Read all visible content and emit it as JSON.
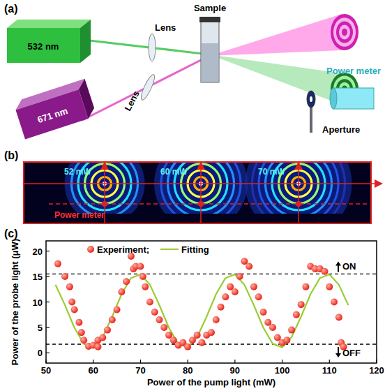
{
  "panels": {
    "a": "(a)",
    "b": "(b)",
    "c": "(c)"
  },
  "setup": {
    "lasers": [
      {
        "label": "532 nm",
        "color": "#2fbf3f"
      },
      {
        "label": "671 nm",
        "color": "#8a1a8a"
      }
    ],
    "lenses": [
      "Lens",
      "Lens"
    ],
    "sample": "Sample",
    "power_meter": "Power meter",
    "aperture": "Aperture"
  },
  "patterns": {
    "items": [
      {
        "label": "52 mW",
        "ring_count": 5
      },
      {
        "label": "60 mW",
        "ring_count": 6
      },
      {
        "label": "70 mW",
        "ring_count": 7
      }
    ],
    "detector": "Power meter"
  },
  "chart_data": {
    "type": "scatter",
    "x_label": "Power of the pump light (mW)",
    "y_label": "Power of the probe light (μW)",
    "xlim": [
      50,
      120
    ],
    "xticks": [
      50,
      60,
      70,
      80,
      90,
      100,
      110,
      120
    ],
    "ylim": [
      -2,
      22
    ],
    "yticks": [
      0,
      5,
      10,
      15,
      20
    ],
    "legend": "upper left",
    "annotations": [
      {
        "text": "ON",
        "value": 15.5
      },
      {
        "text": "OFF",
        "value": 1.7
      }
    ],
    "series": [
      {
        "name": "Experiment;",
        "type": "scatter",
        "color": "#e8231a",
        "marker": "circle",
        "x": [
          52.5,
          54,
          55,
          55.5,
          56,
          57,
          57.5,
          58,
          59,
          60,
          61,
          61,
          62,
          63,
          64,
          65,
          66,
          67,
          68,
          68.5,
          69,
          70,
          70.5,
          71,
          72,
          73,
          74,
          75,
          76,
          77,
          78,
          79,
          80,
          81,
          82,
          83,
          84,
          85,
          86,
          87,
          88,
          89,
          90,
          91,
          92,
          93,
          94,
          95,
          96,
          97,
          98,
          99,
          100,
          101,
          102,
          103,
          104,
          105,
          106,
          107,
          108,
          109,
          110,
          111,
          112,
          112.5,
          113
        ],
        "values": [
          17.5,
          15,
          13,
          10,
          8.5,
          6,
          4,
          2.5,
          1.3,
          1.5,
          2.5,
          1.2,
          3,
          4.5,
          6.5,
          8.5,
          12,
          14,
          19,
          16.5,
          17,
          17,
          15,
          13,
          10,
          8,
          6.5,
          5,
          3.5,
          2.5,
          1.5,
          2,
          1.2,
          2.5,
          3.5,
          2,
          3.5,
          4,
          6.5,
          9,
          11,
          13,
          12,
          15,
          18,
          17,
          13,
          11,
          8,
          6,
          5,
          3,
          2,
          2.5,
          4.5,
          7.5,
          9.5,
          13,
          17,
          16.5,
          16.5,
          16,
          13,
          10,
          7,
          2,
          1.2
        ]
      },
      {
        "name": "Fitting",
        "type": "line",
        "color": "#9acd32",
        "line_style": "solid",
        "x": [
          52,
          54,
          56,
          58,
          60,
          62,
          64,
          66,
          68,
          70,
          72,
          74,
          76,
          78,
          80,
          82,
          84,
          86,
          88,
          90,
          92,
          94,
          96,
          98,
          100,
          102,
          104,
          106,
          108,
          110,
          112,
          114
        ],
        "values": [
          13.4,
          9.4,
          4.96,
          1.79,
          1.09,
          3.12,
          7.12,
          11.54,
          14.71,
          15.41,
          13.38,
          9.38,
          4.96,
          1.79,
          1.09,
          3.12,
          7.12,
          11.54,
          14.71,
          15.41,
          13.38,
          9.38,
          4.96,
          1.79,
          1.09,
          3.12,
          7.12,
          11.54,
          14.71,
          15.41,
          13.38,
          9.38
        ]
      }
    ]
  }
}
